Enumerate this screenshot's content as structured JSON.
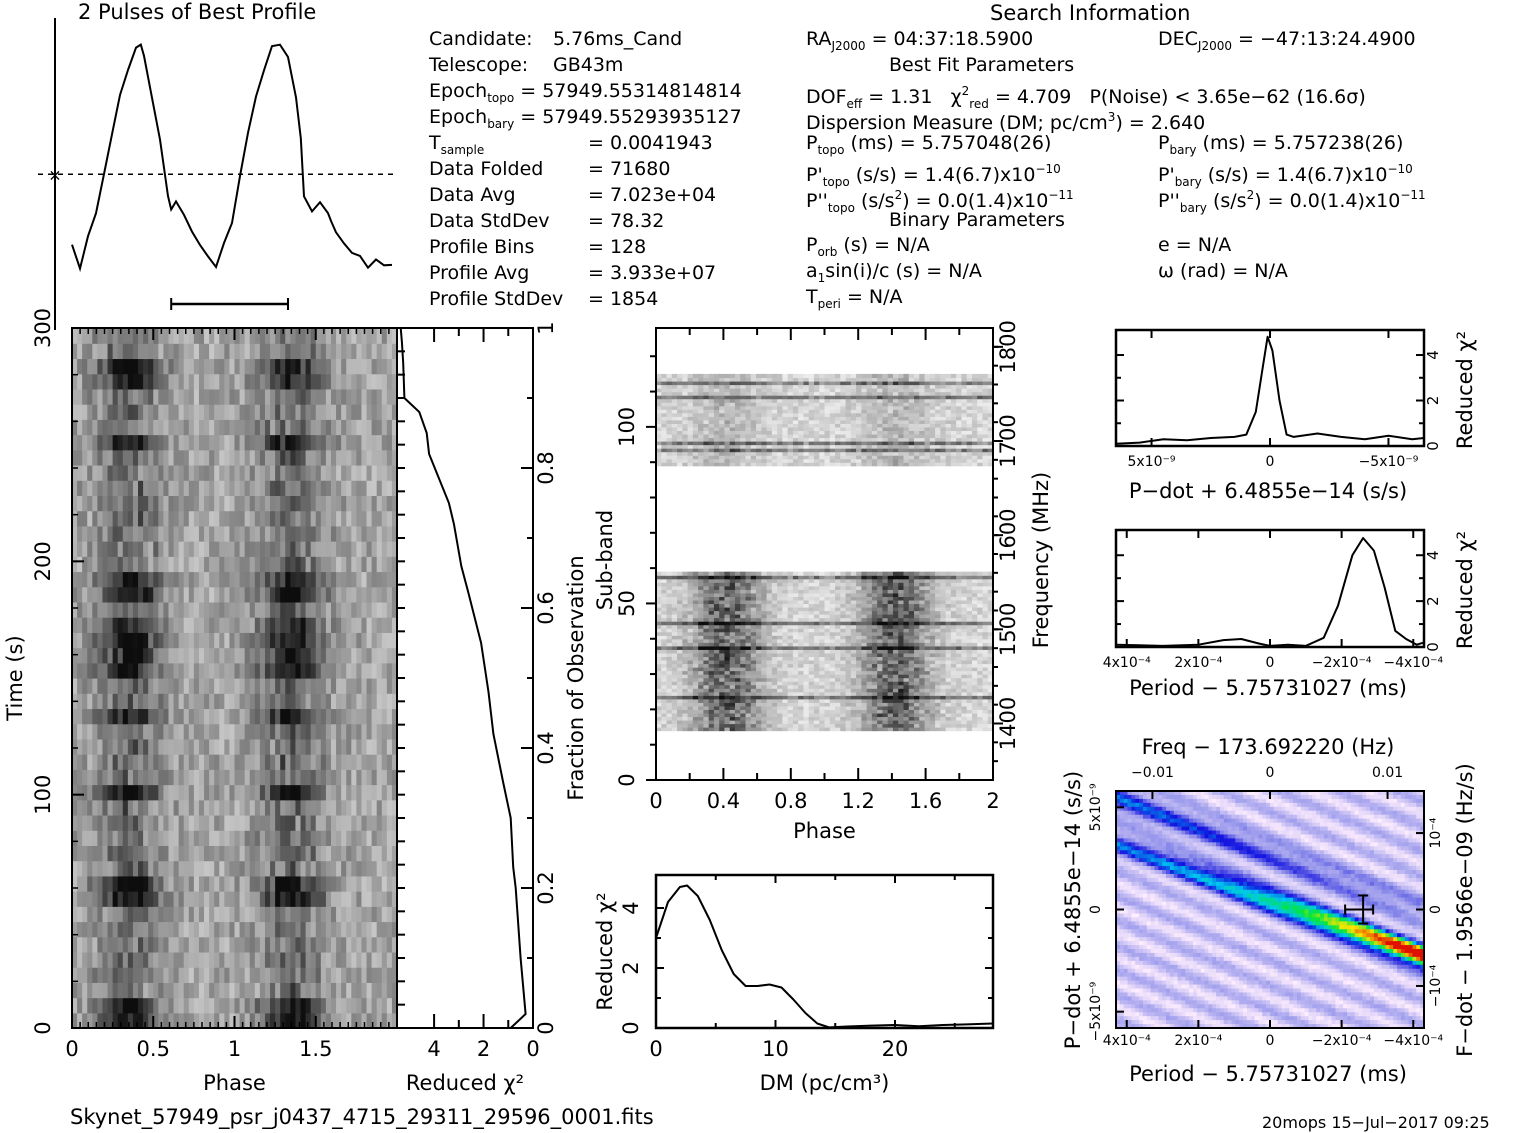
{
  "profile_panel": {
    "title": "2 Pulses of Best Profile"
  },
  "candidate_info": {
    "candidate_label": "Candidate:",
    "candidate_value": "5.76ms_Cand",
    "telescope_label": "Telescope:",
    "telescope_value": "GB43m",
    "epoch_topo_label": "Epoch",
    "epoch_topo_sub": "topo",
    "epoch_topo_value": "= 57949.55314814814",
    "epoch_bary_label": "Epoch",
    "epoch_bary_sub": "bary",
    "epoch_bary_value": "= 57949.55293935127",
    "tsample_label": "T",
    "tsample_sub": "sample",
    "tsample_value": "= 0.0041943",
    "rows": [
      {
        "label": "Data Folded",
        "value": "= 71680"
      },
      {
        "label": "Data Avg",
        "value": "= 7.023e+04"
      },
      {
        "label": "Data StdDev",
        "value": "= 78.32"
      },
      {
        "label": "Profile Bins",
        "value": "= 128"
      },
      {
        "label": "Profile Avg",
        "value": "= 3.933e+07"
      },
      {
        "label": "Profile StdDev",
        "value": "= 1854"
      }
    ]
  },
  "search_info": {
    "title": "Search Information",
    "ra_label": "RA",
    "ra_sub": "J2000",
    "ra_value": "= 04:37:18.5900",
    "dec_label": "DEC",
    "dec_sub": "J2000",
    "dec_value": "= −47:13:24.4900",
    "best_fit_title": "Best Fit Parameters",
    "dof_label": "DOF",
    "dof_sub": "eff",
    "dof_value": "= 1.31",
    "chi_label": "χ",
    "chi_sup": "2",
    "chi_sub": "red",
    "chi_value": "= 4.709",
    "pnoise": "P(Noise) < 3.65e−62   (16.6σ)",
    "dm_text_a": "Dispersion Measure (DM; pc/cm",
    "dm_text_sup": "3",
    "dm_text_b": ") = 2.640",
    "ptopo_label": "P",
    "ptopo_sub": "topo",
    "ptopo_value": "(ms) =  5.757048(26)",
    "pbary_label": "P",
    "pbary_sub": "bary",
    "pbary_value": "(ms) =  5.757238(26)",
    "pdtopo_label": "P'",
    "pdtopo_sub": "topo",
    "pdtopo_value": "(s/s) =  1.4(6.7)x10",
    "pdtopo_exp": "−10",
    "pdbary_label": "P'",
    "pdbary_sub": "bary",
    "pdbary_value": "(s/s) =  1.4(6.7)x10",
    "pdbary_exp": "−10",
    "pddtopo_label": "P''",
    "pddtopo_sub": "topo",
    "pddtopo_value_a": "(s/s",
    "pddtopo_value_sup": "2",
    "pddtopo_value_b": ") = 0.0(1.4)x10",
    "pddtopo_exp": "−11",
    "pddbary_label": "P''",
    "pddbary_sub": "bary",
    "pddbary_value_a": "(s/s",
    "pddbary_value_sup": "2",
    "pddbary_value_b": ") = 0.0(1.4)x10",
    "pddbary_exp": "−11",
    "binary_title": "Binary Parameters",
    "porb_label": "P",
    "porb_sub": "orb",
    "porb_value": "(s) = N/A",
    "e_text": "e = N/A",
    "a1_label": "a",
    "a1_sub": "1",
    "a1_value": "sin(i)/c (s) = N/A",
    "omega_text": "ω (rad) = N/A",
    "tperi_label": "T",
    "tperi_sub": "peri",
    "tperi_value": "= N/A"
  },
  "footer": {
    "filename": "Skynet_57949_psr_j0437_4715_29311_29596_0001.fits",
    "stamp": "20mops  15−Jul−2017 09:25"
  },
  "colors": {
    "ink": "#000000",
    "ppdot_low": "#ffeefe",
    "ppdot_mid": "#1010e0",
    "ppdot_peak": "#e01000"
  },
  "chart_data": [
    {
      "id": "profile",
      "type": "line",
      "title": "2 Pulses of Best Profile",
      "xlabel": "",
      "ylabel": "",
      "x": [
        0.0,
        0.05,
        0.1,
        0.15,
        0.2,
        0.25,
        0.3,
        0.35,
        0.4,
        0.43,
        0.45,
        0.5,
        0.55,
        0.6,
        0.62,
        0.65,
        0.7,
        0.75,
        0.8,
        0.85,
        0.9,
        0.95,
        1.0,
        1.05,
        1.1,
        1.15,
        1.2,
        1.25,
        1.3,
        1.35,
        1.4,
        1.43,
        1.45,
        1.5,
        1.55,
        1.6,
        1.62,
        1.65,
        1.7,
        1.75,
        1.8,
        1.85,
        1.9,
        1.95,
        2.0
      ],
      "y": [
        0.15,
        0.05,
        0.18,
        0.28,
        0.45,
        0.62,
        0.78,
        0.9,
        0.99,
        1.0,
        0.95,
        0.78,
        0.6,
        0.35,
        0.3,
        0.33,
        0.28,
        0.2,
        0.15,
        0.1,
        0.05,
        0.15,
        0.25,
        0.45,
        0.62,
        0.78,
        0.9,
        0.99,
        1.0,
        0.95,
        0.78,
        0.6,
        0.35,
        0.3,
        0.33,
        0.28,
        0.25,
        0.2,
        0.15,
        0.12,
        0.1,
        0.05,
        0.08,
        0.07,
        0.06
      ],
      "mean_line": 0.45,
      "error_bar_phase": [
        0.62,
        1.35
      ]
    },
    {
      "id": "time-phase",
      "type": "heatmap",
      "xlabel": "Phase",
      "ylabel": "Time (s)",
      "xticks": [
        "0",
        "0.5",
        "1",
        "1.5"
      ],
      "xtick_values": [
        0,
        0.5,
        1,
        1.5
      ],
      "yticks": [
        "0",
        "100",
        "200",
        "300"
      ],
      "ytick_values": [
        0,
        100,
        200,
        300
      ],
      "xlim": [
        0,
        2
      ],
      "ylim": [
        0,
        300
      ],
      "dark_rows_s": [
        5,
        60,
        100,
        135,
        155,
        170,
        190,
        250,
        280
      ],
      "pulse_phases": [
        0.35,
        1.35
      ]
    },
    {
      "id": "chi-vs-time",
      "type": "line",
      "xlabel": "Reduced χ²",
      "ylabel": "Fraction of Observation",
      "xticks": [
        "4",
        "2",
        "0"
      ],
      "xtick_values": [
        4,
        2,
        0
      ],
      "yticks": [
        "0",
        "0.2",
        "0.4",
        "0.6",
        "0.8",
        "1"
      ],
      "ytick_values": [
        0,
        0.2,
        0.4,
        0.6,
        0.8,
        1
      ],
      "xlim": [
        5.5,
        0
      ],
      "ylim": [
        0,
        1
      ],
      "x": [
        0.9,
        0.3,
        0.5,
        0.7,
        0.8,
        0.9,
        1.2,
        1.6,
        1.8,
        2.1,
        2.6,
        2.9,
        3.2,
        3.4,
        4.2,
        4.3,
        4.6,
        5.2,
        5.25,
        5.3,
        5.35
      ],
      "y": [
        0,
        0.02,
        0.1,
        0.2,
        0.23,
        0.3,
        0.35,
        0.42,
        0.48,
        0.55,
        0.62,
        0.66,
        0.72,
        0.75,
        0.82,
        0.85,
        0.88,
        0.9,
        0.95,
        0.98,
        1.0
      ]
    },
    {
      "id": "subband-phase",
      "type": "heatmap",
      "xlabel": "Phase",
      "ylabel": "Sub-band",
      "y2label": "Frequency (MHz)",
      "xticks": [
        "0",
        "0.4",
        "0.8",
        "1.2",
        "1.6",
        "2"
      ],
      "xtick_values": [
        0,
        0.4,
        0.8,
        1.2,
        1.6,
        2
      ],
      "yticks": [
        "0",
        "50",
        "100"
      ],
      "ytick_values": [
        0,
        50,
        100
      ],
      "y2ticks": [
        "1400",
        "1500",
        "1600",
        "1700",
        "1800"
      ],
      "y2tick_values": [
        1400,
        1500,
        1600,
        1700,
        1800
      ],
      "xlim": [
        0,
        2
      ],
      "ylim": [
        0,
        128
      ],
      "y2lim": [
        1340,
        1820
      ],
      "filled_bands": [
        [
          14,
          59
        ],
        [
          89,
          115
        ]
      ],
      "pulse_phases": [
        0.42,
        1.42
      ]
    },
    {
      "id": "dm-chi",
      "type": "line",
      "xlabel": "DM (pc/cm³)",
      "ylabel": "Reduced χ²",
      "xticks": [
        "0",
        "10",
        "20"
      ],
      "xtick_values": [
        0,
        10,
        20
      ],
      "yticks": [
        "0",
        "2",
        "4"
      ],
      "ytick_values": [
        0,
        2,
        4
      ],
      "xlim": [
        0,
        28.2
      ],
      "ylim": [
        0,
        5.1
      ],
      "x": [
        0,
        1,
        2,
        2.6,
        3.5,
        4.5,
        5.5,
        6.5,
        7.5,
        8.5,
        9.5,
        10.5,
        11.5,
        12.5,
        13.5,
        14.5,
        16,
        18,
        20,
        22,
        24,
        26,
        28.2
      ],
      "y": [
        3.0,
        4.2,
        4.7,
        4.75,
        4.4,
        3.6,
        2.6,
        1.8,
        1.4,
        1.4,
        1.45,
        1.35,
        0.95,
        0.5,
        0.15,
        0.02,
        0.05,
        0.08,
        0.1,
        0.06,
        0.1,
        0.12,
        0.15
      ]
    },
    {
      "id": "pdot-chi",
      "type": "line",
      "xlabel": "P−dot + 6.4855e−14 (s/s)",
      "ylabel": "Reduced χ²",
      "xticks": [
        "5x10⁻⁹",
        "0",
        "−5x10⁻⁹"
      ],
      "xtick_values": [
        5e-09,
        0,
        -5e-09
      ],
      "yticks": [
        "0",
        "2",
        "4"
      ],
      "ytick_values": [
        0,
        2,
        4
      ],
      "xlim": [
        6.5e-09,
        -6.5e-09
      ],
      "ylim": [
        0,
        5.1
      ],
      "x": [
        6.5e-09,
        5.5e-09,
        4.5e-09,
        3.5e-09,
        2.5e-09,
        1.5e-09,
        1e-09,
        6e-10,
        3e-10,
        1e-10,
        -1e-10,
        -4e-10,
        -7e-10,
        -1e-09,
        -2e-09,
        -3e-09,
        -4e-09,
        -5e-09,
        -6e-09,
        -6.5e-09
      ],
      "y": [
        0.1,
        0.15,
        0.3,
        0.25,
        0.35,
        0.4,
        0.5,
        1.5,
        3.5,
        4.8,
        4.2,
        2.0,
        0.5,
        0.4,
        0.55,
        0.4,
        0.3,
        0.45,
        0.3,
        0.35
      ]
    },
    {
      "id": "period-chi",
      "type": "line",
      "xlabel": "Period − 5.75731027 (ms)",
      "ylabel": "Reduced χ²",
      "xticks": [
        "4x10⁻⁴",
        "2x10⁻⁴",
        "0",
        "−2x10⁻⁴",
        "−4x10⁻⁴"
      ],
      "xtick_values": [
        0.0004,
        0.0002,
        0,
        -0.0002,
        -0.0004
      ],
      "yticks": [
        "0",
        "2",
        "4"
      ],
      "ytick_values": [
        0,
        2,
        4
      ],
      "xlim": [
        0.00043,
        -0.00043
      ],
      "ylim": [
        0,
        5.1
      ],
      "x": [
        0.00043,
        0.0003,
        0.0002,
        0.00013,
        8e-05,
        3e-05,
        0,
        -5e-05,
        -0.0001,
        -0.00015,
        -0.00019,
        -0.00023,
        -0.00026,
        -0.00029,
        -0.00032,
        -0.00035,
        -0.00038,
        -0.00041,
        -0.00043
      ],
      "y": [
        0.1,
        0.05,
        0.1,
        0.3,
        0.35,
        0.15,
        0.05,
        0.1,
        0.05,
        0.4,
        1.8,
        4.0,
        4.75,
        4.2,
        2.6,
        0.7,
        0.35,
        0.1,
        0.2
      ]
    },
    {
      "id": "ppdot-plane",
      "type": "heatmap",
      "xlabel": "Period − 5.75731027 (ms)",
      "ylabel": "P−dot + 6.4855e−14 (s/s)",
      "x2label": "Freq − 173.692220 (Hz)",
      "y2label": "F−dot − 1.9566e−09 (Hz/s)",
      "xticks": [
        "4x10⁻⁴",
        "2x10⁻⁴",
        "0",
        "−2x10⁻⁴",
        "−4x10⁻⁴"
      ],
      "xtick_values": [
        0.0004,
        0.0002,
        0,
        -0.0002,
        -0.0004
      ],
      "x2ticks": [
        "−0.01",
        "0",
        "0.01"
      ],
      "x2tick_values": [
        -0.01,
        0,
        0.01
      ],
      "yticks": [
        "−5x10⁻⁹",
        "0",
        "5x10⁻⁹"
      ],
      "ytick_values": [
        -5e-09,
        0,
        5e-09
      ],
      "y2ticks": [
        "10⁻⁴",
        "0",
        "−10⁻⁴"
      ],
      "y2tick_values": [
        0.0001,
        0,
        -0.0001
      ],
      "xlim": [
        0.00043,
        -0.00043
      ],
      "ylim": [
        5.8e-09,
        -5.8e-09
      ],
      "best_fit": {
        "period": -0.00026,
        "pdot": 0.0
      }
    }
  ]
}
